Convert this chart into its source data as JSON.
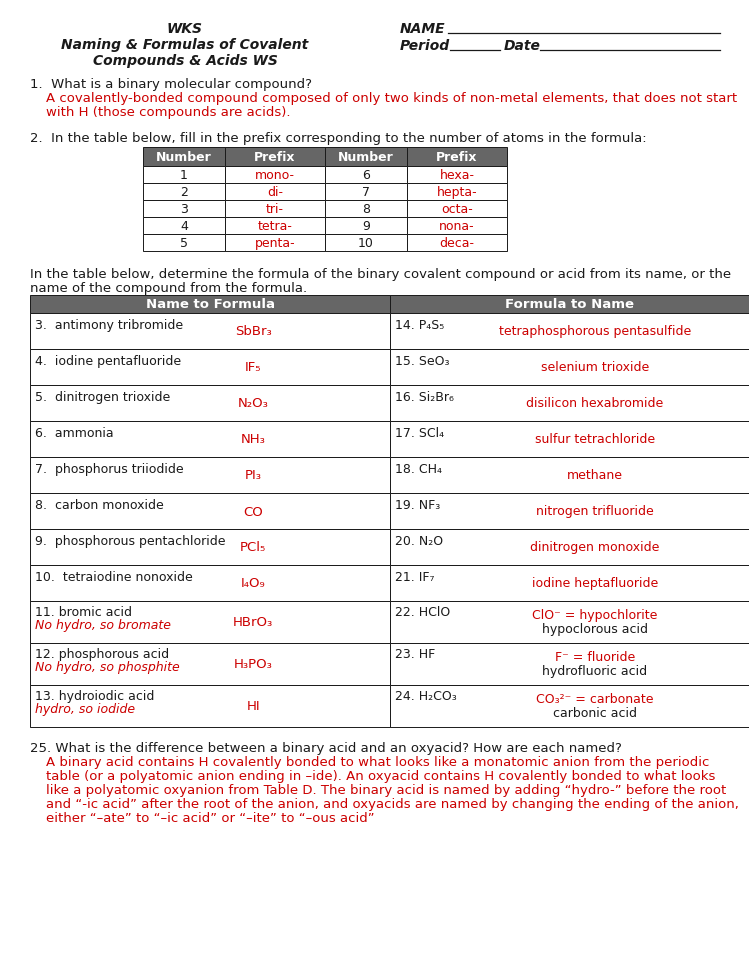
{
  "bg_color": "#ffffff",
  "text_color_black": "#1a1a1a",
  "text_color_red": "#cc0000",
  "header_bg": "#666666",
  "header_text": "#ffffff",
  "prefix_table": {
    "headers": [
      "Number",
      "Prefix",
      "Number",
      "Prefix"
    ],
    "rows": [
      [
        "1",
        "mono-",
        "6",
        "hexa-"
      ],
      [
        "2",
        "di-",
        "7",
        "hepta-"
      ],
      [
        "3",
        "tri-",
        "8",
        "octa-"
      ],
      [
        "4",
        "tetra-",
        "9",
        "nona-"
      ],
      [
        "5",
        "penta-",
        "10",
        "deca-"
      ]
    ]
  },
  "main_table_rows": [
    {
      "left_num": "3.",
      "left_name": "antimony tribromide",
      "left_formula": "SbBr₃",
      "right_num": "14.",
      "right_formula": "P₄S₅",
      "right_name": "tetraphosphorous pentasulfide",
      "extra": false
    },
    {
      "left_num": "4.",
      "left_name": "iodine pentafluoride",
      "left_formula": "IF₅",
      "right_num": "15.",
      "right_formula": "SeO₃",
      "right_name": "selenium trioxide",
      "extra": false
    },
    {
      "left_num": "5.",
      "left_name": "dinitrogen trioxide",
      "left_formula": "N₂O₃",
      "right_num": "16.",
      "right_formula": "Si₂Br₆",
      "right_name": "disilicon hexabromide",
      "extra": false
    },
    {
      "left_num": "6.",
      "left_name": "ammonia",
      "left_formula": "NH₃",
      "right_num": "17.",
      "right_formula": "SCl₄",
      "right_name": "sulfur tetrachloride",
      "extra": false
    },
    {
      "left_num": "7.",
      "left_name": "phosphorus triiodide",
      "left_formula": "PI₃",
      "right_num": "18.",
      "right_formula": "CH₄",
      "right_name": "methane",
      "extra": false
    },
    {
      "left_num": "8.",
      "left_name": "carbon monoxide",
      "left_formula": "CO",
      "right_num": "19.",
      "right_formula": "NF₃",
      "right_name": "nitrogen trifluoride",
      "extra": false
    },
    {
      "left_num": "9.",
      "left_name": "phosphorous pentachloride",
      "left_formula": "PCl₅",
      "right_num": "20.",
      "right_formula": "N₂O",
      "right_name": "dinitrogen monoxide",
      "extra": false
    },
    {
      "left_num": "10.",
      "left_name": "tetraiodine nonoxide",
      "left_formula": "I₄O₉",
      "right_num": "21.",
      "right_formula": "IF₇",
      "right_name": "iodine heptafluoride",
      "extra": false
    },
    {
      "left_num": "11.",
      "left_name": "bromic acid",
      "left_name2": "No hydro, so bromate",
      "left_formula": "HBrO₃",
      "right_num": "22.",
      "right_formula": "HClO",
      "right_name": "ClO⁻ = hypochlorite",
      "right_name2": "hypoclorous acid",
      "extra": true
    },
    {
      "left_num": "12.",
      "left_name": "phosphorous acid",
      "left_name2": "No hydro, so phosphite",
      "left_formula": "H₃PO₃",
      "right_num": "23.",
      "right_formula": "HF",
      "right_name": "F⁻ = fluoride",
      "right_name2": "hydrofluoric acid",
      "extra": true
    },
    {
      "left_num": "13.",
      "left_name": "hydroiodic acid",
      "left_name2": "hydro, so iodide",
      "left_formula": "HI",
      "right_num": "24.",
      "right_formula": "H₂CO₃",
      "right_name": "CO₃²⁻ = carbonate",
      "right_name2": "carbonic acid",
      "extra": true
    }
  ],
  "q25_answer_lines": [
    "A binary acid contains H covalently bonded to what looks like a monatomic anion from the periodic",
    "table (or a polyatomic anion ending in –ide). An oxyacid contains H covalently bonded to what looks",
    "like a polyatomic oxyanion from Table D. The binary acid is named by adding “hydro-” before the root",
    "and “-ic acid” after the root of the anion, and oxyacids are named by changing the ending of the anion,",
    "either “–ate” to “–ic acid” or “–ite” to “–ous acid”"
  ]
}
